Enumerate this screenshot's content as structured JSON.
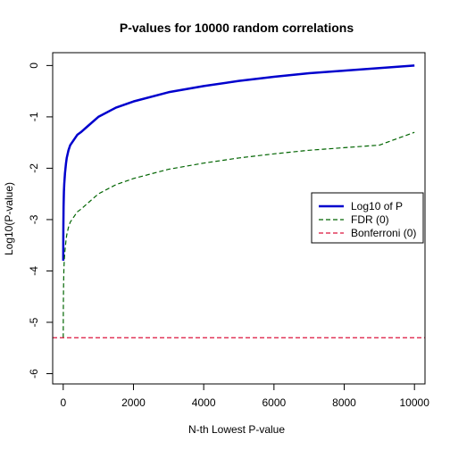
{
  "chart_data": {
    "type": "line",
    "title": "P-values for 10000 random correlations",
    "xlabel": "N-th Lowest P-value",
    "ylabel": "Log10(P-value)",
    "xlim": [
      -300,
      10300
    ],
    "ylim": [
      -6.2,
      0.25
    ],
    "x_ticks": [
      0,
      2000,
      4000,
      6000,
      8000,
      10000
    ],
    "y_ticks": [
      0,
      -1,
      -2,
      -3,
      -4,
      -5,
      -6
    ],
    "legend_position": "right",
    "series": [
      {
        "name": "Log10 of P",
        "color": "#0000cd",
        "style": "solid",
        "x": [
          1,
          2,
          3,
          5,
          8,
          10,
          15,
          20,
          30,
          50,
          80,
          100,
          150,
          200,
          300,
          400,
          500,
          700,
          1000,
          1500,
          2000,
          3000,
          4000,
          5000,
          6000,
          7000,
          8000,
          9000,
          10000
        ],
        "y": [
          -3.8,
          -3.5,
          -3.3,
          -3.1,
          -2.9,
          -2.75,
          -2.6,
          -2.45,
          -2.3,
          -2.1,
          -1.9,
          -1.8,
          -1.65,
          -1.55,
          -1.45,
          -1.35,
          -1.3,
          -1.18,
          -1.0,
          -0.82,
          -0.7,
          -0.52,
          -0.4,
          -0.3,
          -0.22,
          -0.15,
          -0.1,
          -0.05,
          0.0
        ]
      },
      {
        "name": "FDR (0)",
        "color": "#006400",
        "style": "dashed",
        "x": [
          1,
          2,
          3,
          5,
          8,
          10,
          15,
          20,
          30,
          50,
          80,
          100,
          150,
          200,
          300,
          400,
          500,
          700,
          1000,
          1500,
          2000,
          3000,
          4000,
          5000,
          6000,
          7000,
          8000,
          9000,
          10000
        ],
        "y": [
          -5.3,
          -5.0,
          -4.8,
          -4.6,
          -4.4,
          -4.3,
          -4.1,
          -3.95,
          -3.8,
          -3.6,
          -3.4,
          -3.3,
          -3.15,
          -3.05,
          -2.95,
          -2.85,
          -2.8,
          -2.68,
          -2.5,
          -2.32,
          -2.2,
          -2.02,
          -1.9,
          -1.8,
          -1.72,
          -1.65,
          -1.6,
          -1.55,
          -1.3
        ]
      },
      {
        "name": "Bonferroni (0)",
        "color": "#dc143c",
        "style": "dashed",
        "y_constant": -5.3
      }
    ]
  }
}
